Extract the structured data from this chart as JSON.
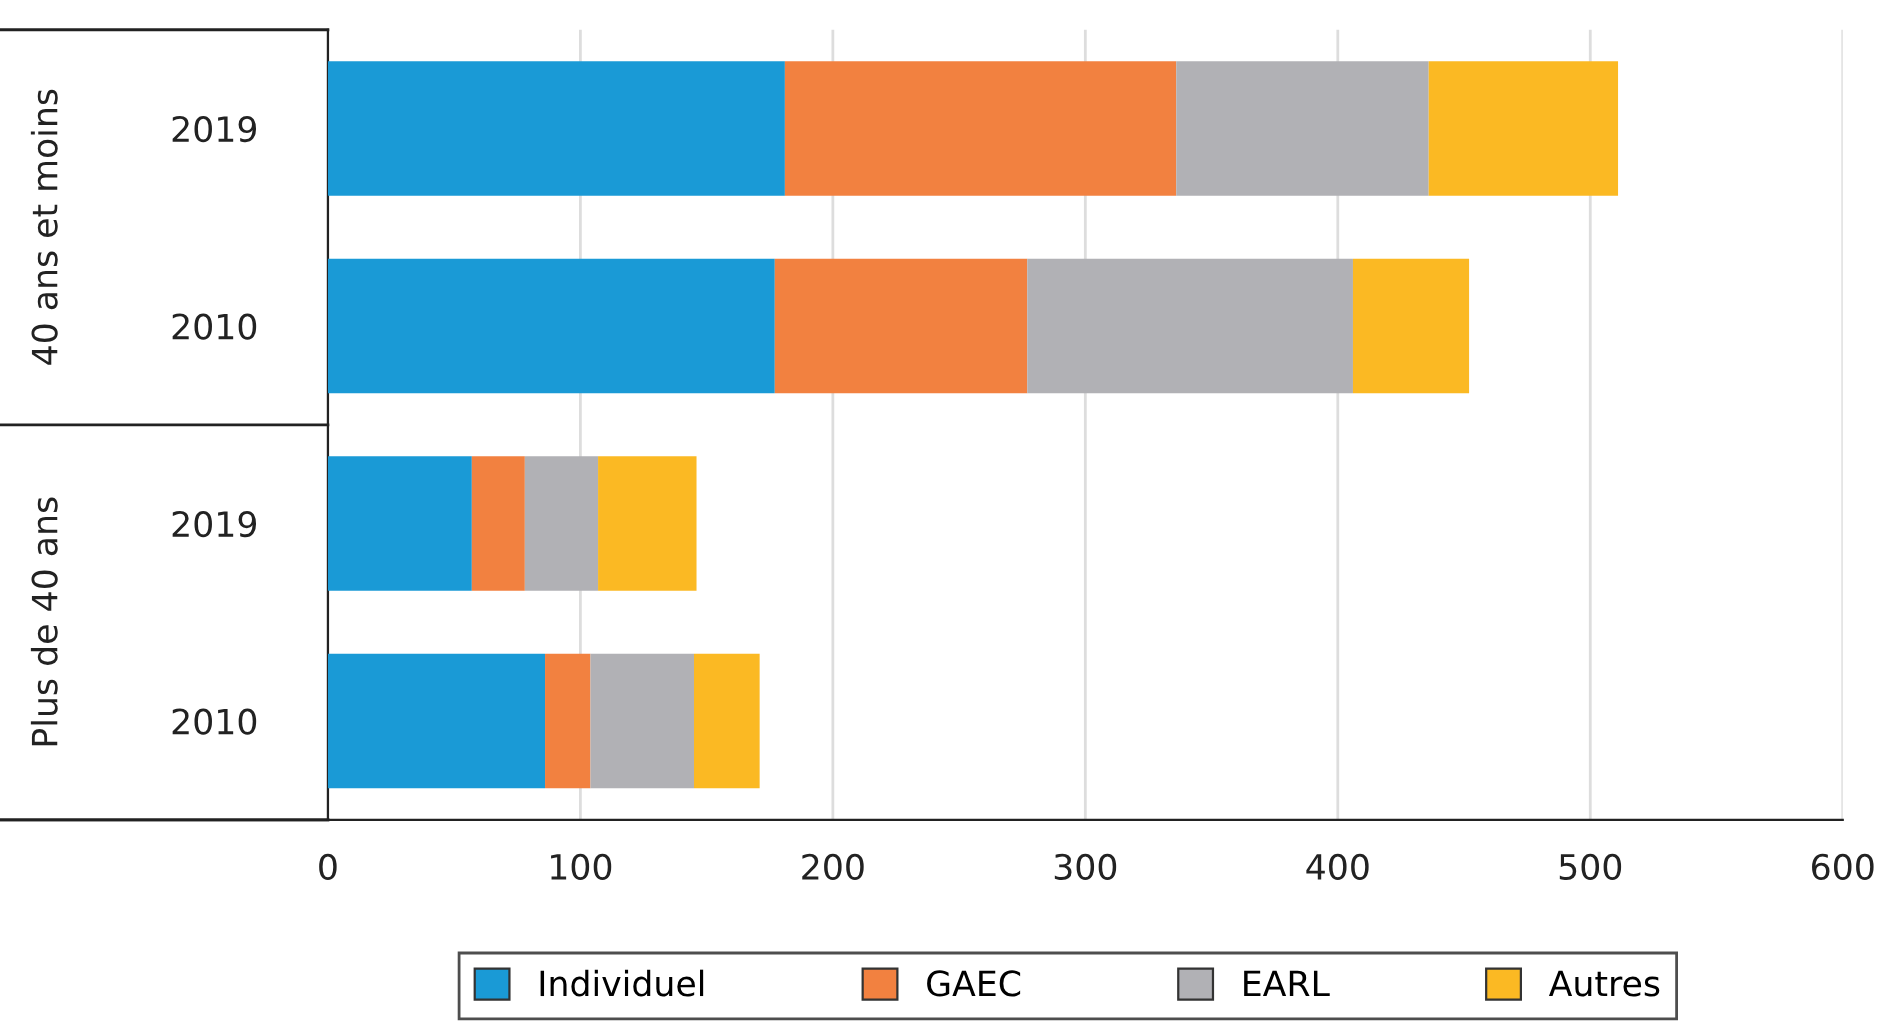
{
  "chart_data": {
    "type": "bar",
    "orientation": "horizontal",
    "stacked": true,
    "categories": [
      "2019",
      "2010",
      "2019",
      "2010"
    ],
    "series": [
      {
        "name": "Individuel",
        "color": "#1a9ad6",
        "values": [
          181,
          177,
          57,
          86
        ]
      },
      {
        "name": "GAEC",
        "color": "#f28140",
        "values": [
          155,
          100,
          21,
          18
        ]
      },
      {
        "name": "EARL",
        "color": "#b1b1b5",
        "values": [
          100,
          129,
          29,
          41
        ]
      },
      {
        "name": "Autres",
        "color": "#fbb923",
        "values": [
          75,
          46,
          39,
          26
        ]
      }
    ],
    "annotations": [
      "40 ans et moins",
      "Plus de 40 ans"
    ],
    "xlim": [
      0,
      600
    ],
    "xticks": [
      0,
      100,
      200,
      300,
      400,
      500,
      600
    ],
    "grid": "x",
    "legend": "bottom"
  }
}
